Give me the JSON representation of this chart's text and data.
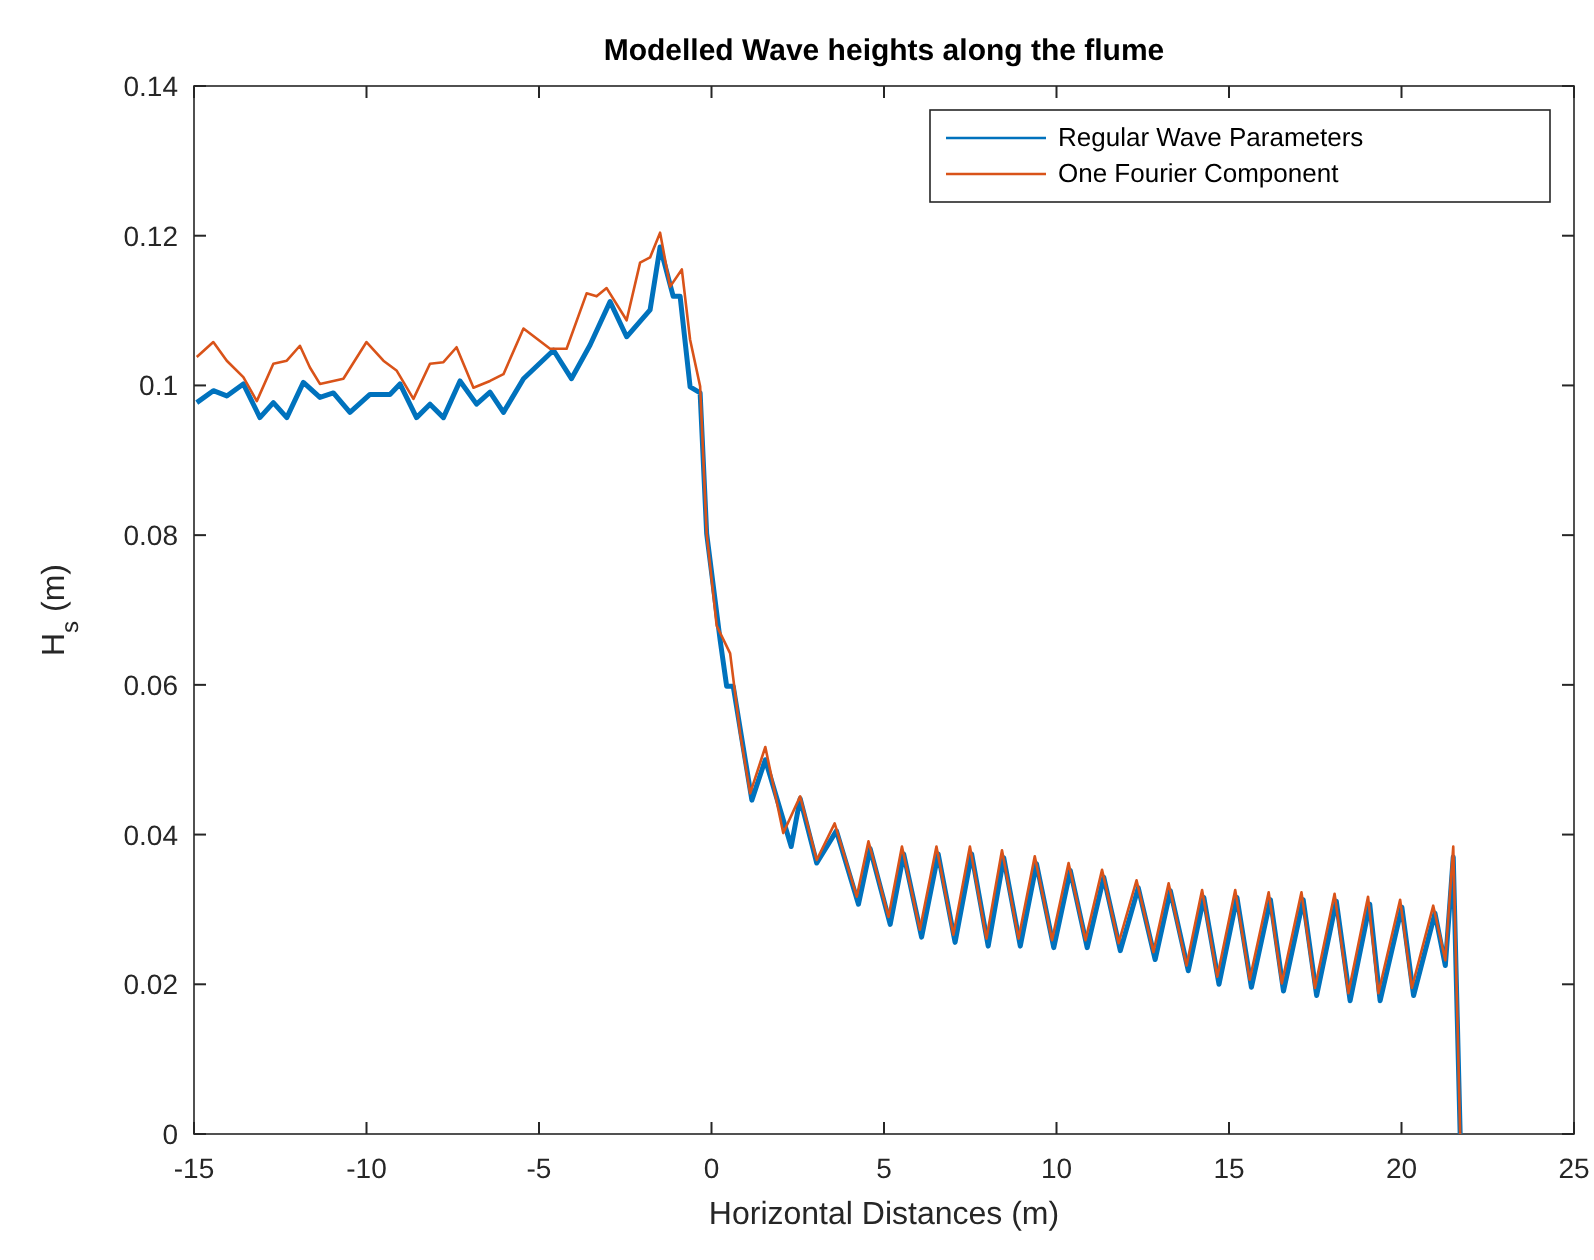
{
  "chart_data": {
    "type": "line",
    "title": "Modelled Wave heights along the flume",
    "xlabel": "Horizontal Distances (m)",
    "ylabel": "H$_{s}$ (m)",
    "xlim": [
      -15,
      25
    ],
    "ylim": [
      0,
      0.14
    ],
    "xticks": [
      -15,
      -10,
      -5,
      0,
      5,
      10,
      15,
      20,
      25
    ],
    "yticks": [
      0,
      0.02,
      0.04,
      0.06,
      0.08,
      0.1,
      0.12,
      0.14
    ],
    "grid": false,
    "legend": "top right",
    "line_style": "solid",
    "marker": "none",
    "series": [
      {
        "name": "Regular Wave Parameters",
        "color": "#0072bd",
        "x": [
          -14.92,
          -14.44,
          -14.05,
          -13.57,
          -13.09,
          -12.7,
          -12.31,
          -11.83,
          -11.35,
          -10.96,
          -10.48,
          -9.9,
          -9.32,
          -9.03,
          -8.55,
          -8.16,
          -7.77,
          -7.29,
          -6.81,
          -6.42,
          -6.03,
          -5.45,
          -4.58,
          -4.06,
          -3.52,
          -2.94,
          -2.46,
          -1.78,
          -1.49,
          -1.11,
          -0.91,
          -0.62,
          -0.33,
          -0.14,
          0.25,
          0.44,
          0.63,
          1.17,
          1.56,
          2.31,
          2.57,
          3.05,
          3.62,
          4.26,
          4.6,
          5.18,
          5.57,
          6.09,
          6.57,
          7.06,
          7.54,
          8.02,
          8.47,
          8.95,
          9.42,
          9.92,
          10.4,
          10.89,
          11.37,
          11.85,
          12.37,
          12.86,
          13.3,
          13.82,
          14.27,
          14.71,
          15.23,
          15.65,
          16.2,
          16.58,
          17.15,
          17.54,
          18.11,
          18.51,
          19.08,
          19.38,
          20.01,
          20.35,
          20.97,
          21.27,
          21.5,
          21.7
        ],
        "values": [
          0.0977,
          0.0993,
          0.0986,
          0.1002,
          0.0957,
          0.0977,
          0.0957,
          0.1004,
          0.0984,
          0.099,
          0.0964,
          0.0988,
          0.0988,
          0.1002,
          0.0957,
          0.0975,
          0.0957,
          0.1006,
          0.0975,
          0.0991,
          0.0964,
          0.1009,
          0.1047,
          0.1009,
          0.1054,
          0.1112,
          0.1065,
          0.1101,
          0.1185,
          0.1119,
          0.1119,
          0.0998,
          0.099,
          0.0802,
          0.066,
          0.0598,
          0.0598,
          0.0446,
          0.05,
          0.0384,
          0.0448,
          0.0362,
          0.0405,
          0.0307,
          0.0381,
          0.028,
          0.0374,
          0.0263,
          0.0374,
          0.0256,
          0.0374,
          0.0251,
          0.0369,
          0.0251,
          0.0361,
          0.0249,
          0.0352,
          0.0249,
          0.0343,
          0.0245,
          0.0329,
          0.0233,
          0.0325,
          0.0218,
          0.0316,
          0.02,
          0.0316,
          0.0196,
          0.0313,
          0.0191,
          0.0313,
          0.0185,
          0.0311,
          0.0178,
          0.0307,
          0.0178,
          0.0303,
          0.0185,
          0.0295,
          0.0225,
          0.037,
          0
        ]
      },
      {
        "name": "One Fourier Component",
        "color": "#d95319",
        "x": [
          -14.92,
          -14.44,
          -14.05,
          -13.57,
          -13.18,
          -12.7,
          -12.31,
          -11.93,
          -11.64,
          -11.35,
          -10.67,
          -10.0,
          -9.51,
          -9.13,
          -8.64,
          -8.16,
          -7.77,
          -7.39,
          -6.9,
          -6.42,
          -6.03,
          -5.45,
          -4.68,
          -4.2,
          -3.62,
          -3.33,
          -3.04,
          -2.46,
          -2.07,
          -1.78,
          -1.49,
          -1.2,
          -0.86,
          -0.62,
          -0.33,
          -0.14,
          0.15,
          0.54,
          0.83,
          1.12,
          1.56,
          2.08,
          2.57,
          3.05,
          3.57,
          4.21,
          4.55,
          5.13,
          5.52,
          6.04,
          6.52,
          7.01,
          7.49,
          7.97,
          8.42,
          8.9,
          9.37,
          9.87,
          10.35,
          10.84,
          11.32,
          11.8,
          12.32,
          12.81,
          13.25,
          13.77,
          14.22,
          14.66,
          15.18,
          15.6,
          16.15,
          16.53,
          17.1,
          17.49,
          18.06,
          18.46,
          19.03,
          19.33,
          19.96,
          20.3,
          20.92,
          21.27,
          21.5,
          21.7
        ],
        "values": [
          0.1038,
          0.1058,
          0.1033,
          0.1011,
          0.0979,
          0.1029,
          0.1033,
          0.1053,
          0.1024,
          0.1002,
          0.1009,
          0.1058,
          0.1033,
          0.102,
          0.0982,
          0.1029,
          0.1031,
          0.1051,
          0.0997,
          0.1006,
          0.1015,
          0.1076,
          0.1049,
          0.1049,
          0.1123,
          0.1119,
          0.113,
          0.1087,
          0.1164,
          0.1171,
          0.1204,
          0.1132,
          0.1155,
          0.1061,
          0.0999,
          0.0802,
          0.0679,
          0.0642,
          0.0535,
          0.0455,
          0.0517,
          0.0402,
          0.0451,
          0.0366,
          0.0415,
          0.0317,
          0.0391,
          0.029,
          0.0384,
          0.0273,
          0.0384,
          0.0266,
          0.0384,
          0.0261,
          0.0379,
          0.0261,
          0.0371,
          0.0259,
          0.0362,
          0.0259,
          0.0353,
          0.0255,
          0.0339,
          0.0243,
          0.0335,
          0.0225,
          0.0326,
          0.021,
          0.0326,
          0.0206,
          0.0323,
          0.0201,
          0.0323,
          0.0195,
          0.0321,
          0.0188,
          0.0317,
          0.0188,
          0.0313,
          0.0195,
          0.0305,
          0.0232,
          0.0384,
          0
        ]
      }
    ]
  }
}
